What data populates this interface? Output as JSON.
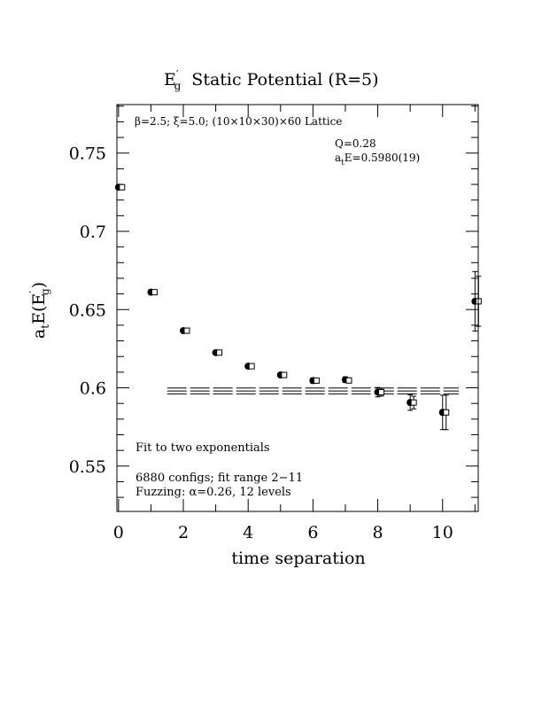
{
  "chart_data": {
    "type": "scatter",
    "title_main": "E",
    "title_sup": "′",
    "title_sub": "g",
    "title_rest": "Static Potential (R=5)",
    "xlabel": "time separation",
    "ylabel_a": "a",
    "ylabel_t": "t",
    "ylabel_mid": "E(E",
    "ylabel_sup": "′",
    "ylabel_sub": "g",
    "ylabel_end": ")",
    "xlim": [
      -0.05,
      11.1
    ],
    "ylim": [
      0.521,
      0.781
    ],
    "x_ticks": [
      0,
      2,
      4,
      6,
      8,
      10
    ],
    "x_tick_labels": [
      "0",
      "2",
      "4",
      "6",
      "8",
      "10"
    ],
    "y_ticks": [
      0.55,
      0.6,
      0.65,
      0.7,
      0.75
    ],
    "y_tick_labels": [
      "0.55",
      "0.6",
      "0.65",
      "0.7",
      "0.75"
    ],
    "annotations": {
      "lattice": "β=2.5; ξ=5.0; (10×10×30)×60 Lattice",
      "q": "Q=0.28",
      "fit_a": "a",
      "fit_t": "t",
      "fit_rest": "E=0.5980(19)",
      "fit_type": "Fit to two exponentials",
      "configs": "6880 configs; fit range 2−11",
      "fuzzing": "Fuzzing: α=0.26, 12 levels"
    },
    "fit_band": {
      "x_start": 1.5,
      "x_end": 10.5,
      "center": 0.598,
      "error": 0.0019
    },
    "series": [
      {
        "marker": "filled-circle",
        "points": [
          {
            "x": 0,
            "y": 0.7282,
            "err": 0.0006
          },
          {
            "x": 1,
            "y": 0.6611,
            "err": 0.0008
          },
          {
            "x": 2,
            "y": 0.6365,
            "err": 0.001
          },
          {
            "x": 3,
            "y": 0.6225,
            "err": 0.0012
          },
          {
            "x": 4,
            "y": 0.6138,
            "err": 0.0013
          },
          {
            "x": 5,
            "y": 0.6082,
            "err": 0.0015
          },
          {
            "x": 6,
            "y": 0.6046,
            "err": 0.0017
          },
          {
            "x": 7,
            "y": 0.6052,
            "err": 0.0018
          },
          {
            "x": 8,
            "y": 0.5972,
            "err": 0.003
          },
          {
            "x": 9,
            "y": 0.5906,
            "err": 0.005
          },
          {
            "x": 10,
            "y": 0.5843,
            "err": 0.011
          },
          {
            "x": 11,
            "y": 0.6553,
            "err": 0.019
          }
        ]
      },
      {
        "marker": "open-square",
        "points": [
          {
            "x": 0,
            "y": 0.7282,
            "err": 0.0005
          },
          {
            "x": 1,
            "y": 0.6611,
            "err": 0.0007
          },
          {
            "x": 2,
            "y": 0.6365,
            "err": 0.0009
          },
          {
            "x": 3,
            "y": 0.6225,
            "err": 0.001
          },
          {
            "x": 4,
            "y": 0.6138,
            "err": 0.0012
          },
          {
            "x": 5,
            "y": 0.6082,
            "err": 0.0013
          },
          {
            "x": 6,
            "y": 0.6046,
            "err": 0.0015
          },
          {
            "x": 7,
            "y": 0.6047,
            "err": 0.0016
          },
          {
            "x": 8,
            "y": 0.5972,
            "err": 0.0025
          },
          {
            "x": 9,
            "y": 0.5906,
            "err": 0.004
          },
          {
            "x": 10,
            "y": 0.5843,
            "err": 0.011
          },
          {
            "x": 11,
            "y": 0.6553,
            "err": 0.016
          }
        ]
      }
    ]
  }
}
